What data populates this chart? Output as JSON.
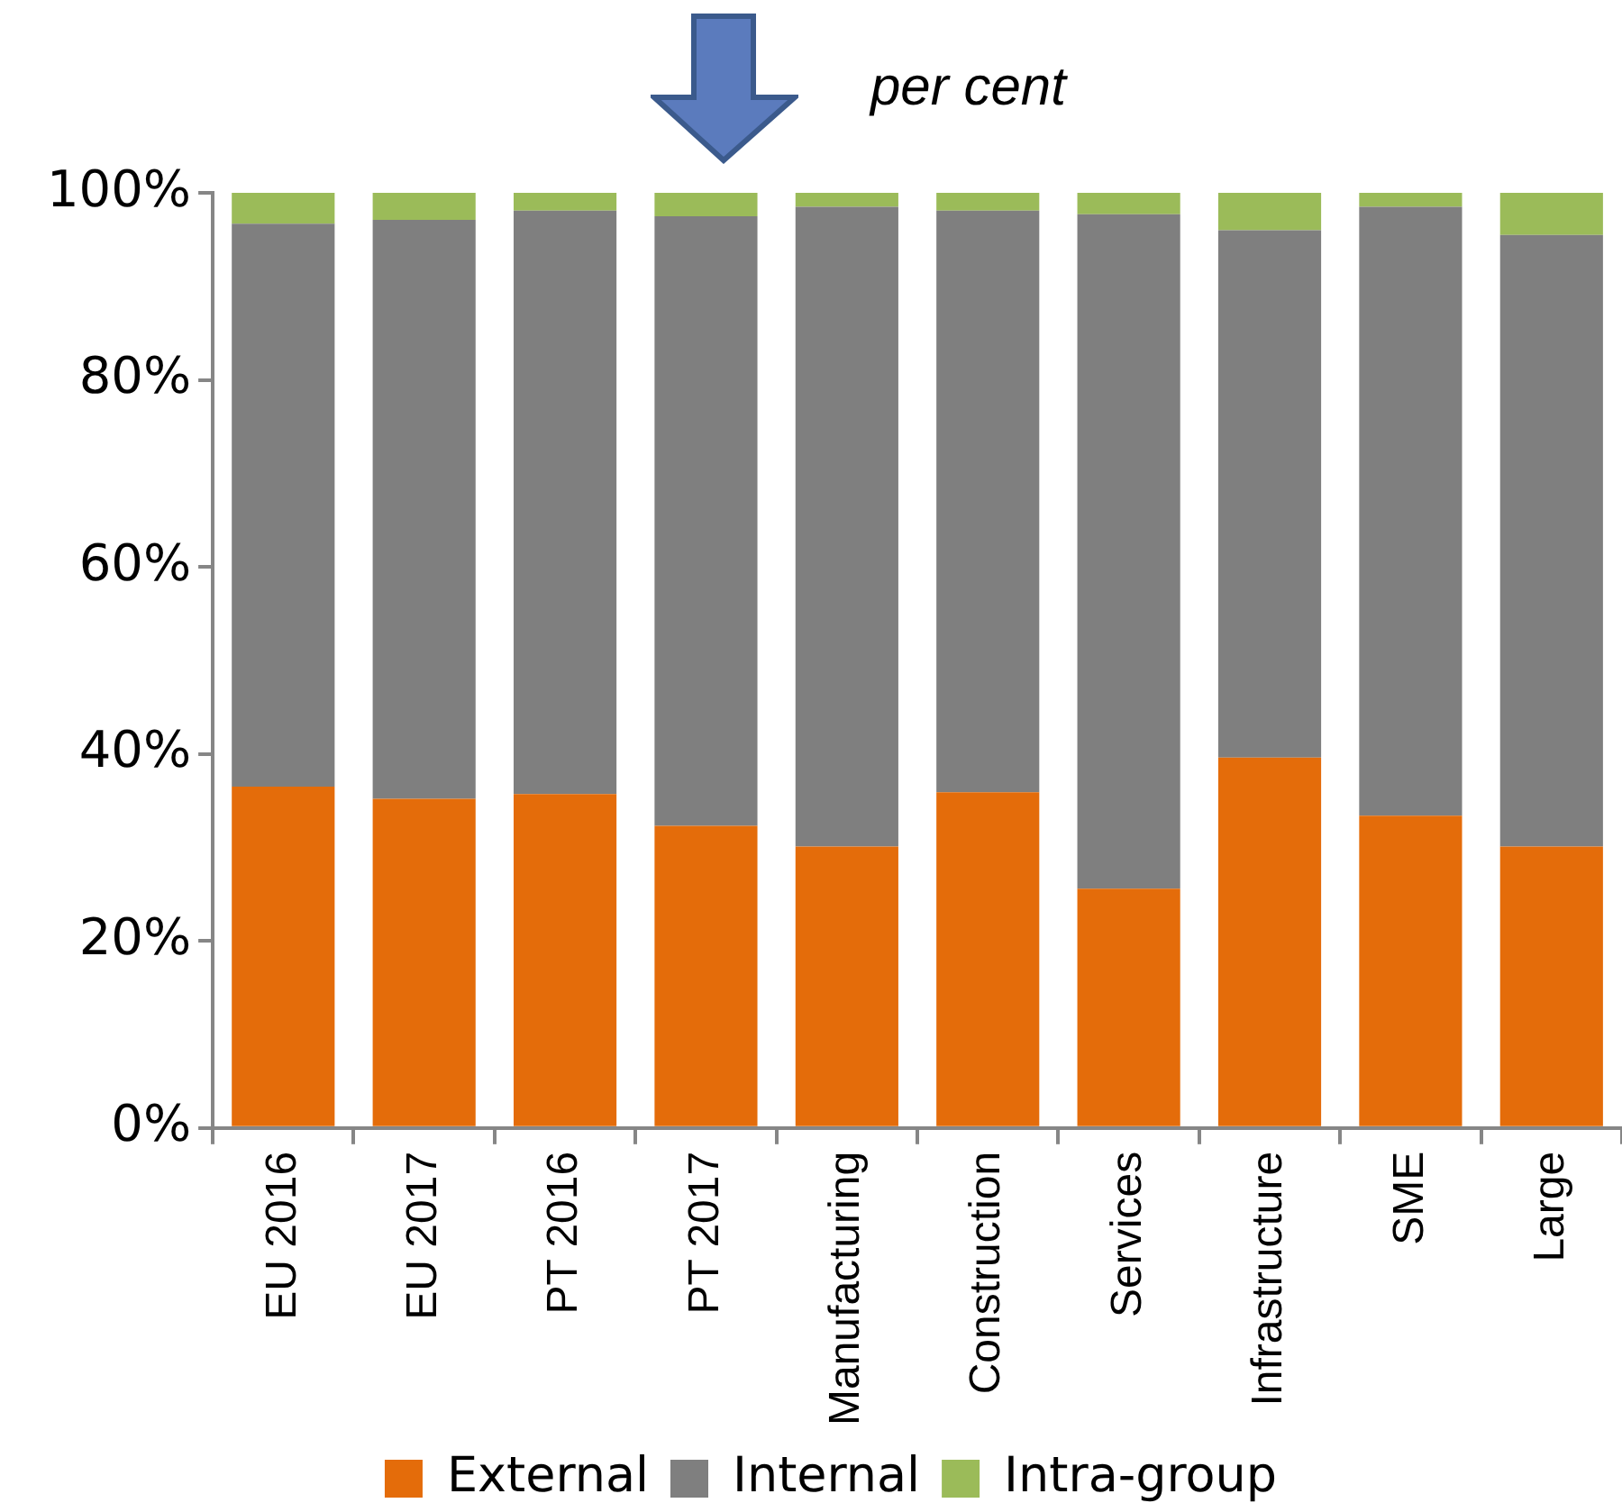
{
  "chart_data": {
    "type": "bar",
    "subtitle": "per cent",
    "categories": [
      "EU 2016",
      "EU 2017",
      "PT 2016",
      "PT 2017",
      "Manufacturing",
      "Construction",
      "Services",
      "Infrastructure",
      "SME",
      "Large"
    ],
    "series": [
      {
        "name": "External",
        "color": "#e46c0a",
        "values": [
          36.5,
          35.2,
          35.7,
          32.3,
          30.1,
          35.9,
          25.6,
          39.6,
          33.4,
          30.1
        ]
      },
      {
        "name": "Internal",
        "color": "#7f7f7f",
        "values": [
          60.2,
          61.9,
          62.4,
          65.2,
          68.4,
          62.2,
          72.1,
          56.4,
          65.1,
          65.4
        ]
      },
      {
        "name": "Intra-group",
        "color": "#9bbb59",
        "values": [
          3.3,
          2.9,
          1.9,
          2.5,
          1.5,
          1.9,
          2.3,
          4.0,
          1.5,
          4.5
        ]
      }
    ],
    "stacked": true,
    "ylim": [
      0,
      100
    ],
    "yticks": [
      {
        "value": 0,
        "label": "0%"
      },
      {
        "value": 20,
        "label": "20%"
      },
      {
        "value": 40,
        "label": "40%"
      },
      {
        "value": 60,
        "label": "60%"
      },
      {
        "value": 80,
        "label": "80%"
      },
      {
        "value": 100,
        "label": "100%"
      }
    ],
    "grid": false,
    "legend": "bottom"
  }
}
